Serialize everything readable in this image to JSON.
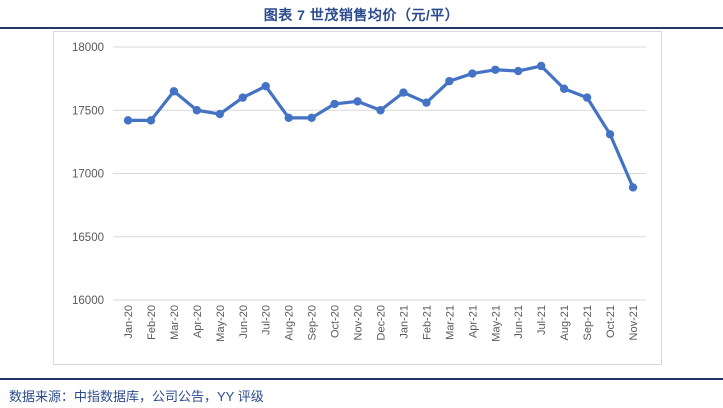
{
  "page": {
    "title": "图表 7 世茂销售均价（元/平）",
    "source_note": "数据来源：中指数据库，公司公告，YY 评级"
  },
  "colors": {
    "title_blue": "#2B4B8F",
    "rule_navy": "#1F3864",
    "line_blue": "#4472C4",
    "axis_text": "#595959",
    "gridline": "#D9D9D9",
    "chart_border": "#D9D9D9"
  },
  "chart_data": {
    "type": "line",
    "title": "图表 7 世茂销售均价（元/平）",
    "categories": [
      "Jan-20",
      "Feb-20",
      "Mar-20",
      "Apr-20",
      "May-20",
      "Jun-20",
      "Jul-20",
      "Aug-20",
      "Sep-20",
      "Oct-20",
      "Nov-20",
      "Dec-20",
      "Jan-21",
      "Feb-21",
      "Mar-21",
      "Apr-21",
      "May-21",
      "Jun-21",
      "Jul-21",
      "Aug-21",
      "Sep-21",
      "Oct-21",
      "Nov-21"
    ],
    "values": [
      17420,
      17420,
      17650,
      17500,
      17470,
      17600,
      17690,
      17440,
      17440,
      17550,
      17570,
      17500,
      17640,
      17560,
      17730,
      17790,
      17820,
      17810,
      17850,
      17670,
      17600,
      17310,
      16890
    ],
    "xlabel": "",
    "ylabel": "",
    "ylim": [
      16000,
      18000
    ],
    "yticks": [
      16000,
      16500,
      17000,
      17500,
      18000
    ],
    "grid": "horizontal",
    "legend": "none",
    "marker": "circle",
    "line_color": "#4472C4",
    "x_tick_rotation": -90
  }
}
